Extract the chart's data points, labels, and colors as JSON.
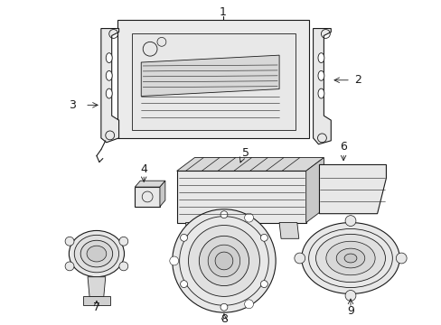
{
  "background_color": "#ffffff",
  "line_color": "#1a1a1a",
  "figsize": [
    4.89,
    3.6
  ],
  "dpi": 100,
  "label_fontsize": 9,
  "lw": 0.8
}
